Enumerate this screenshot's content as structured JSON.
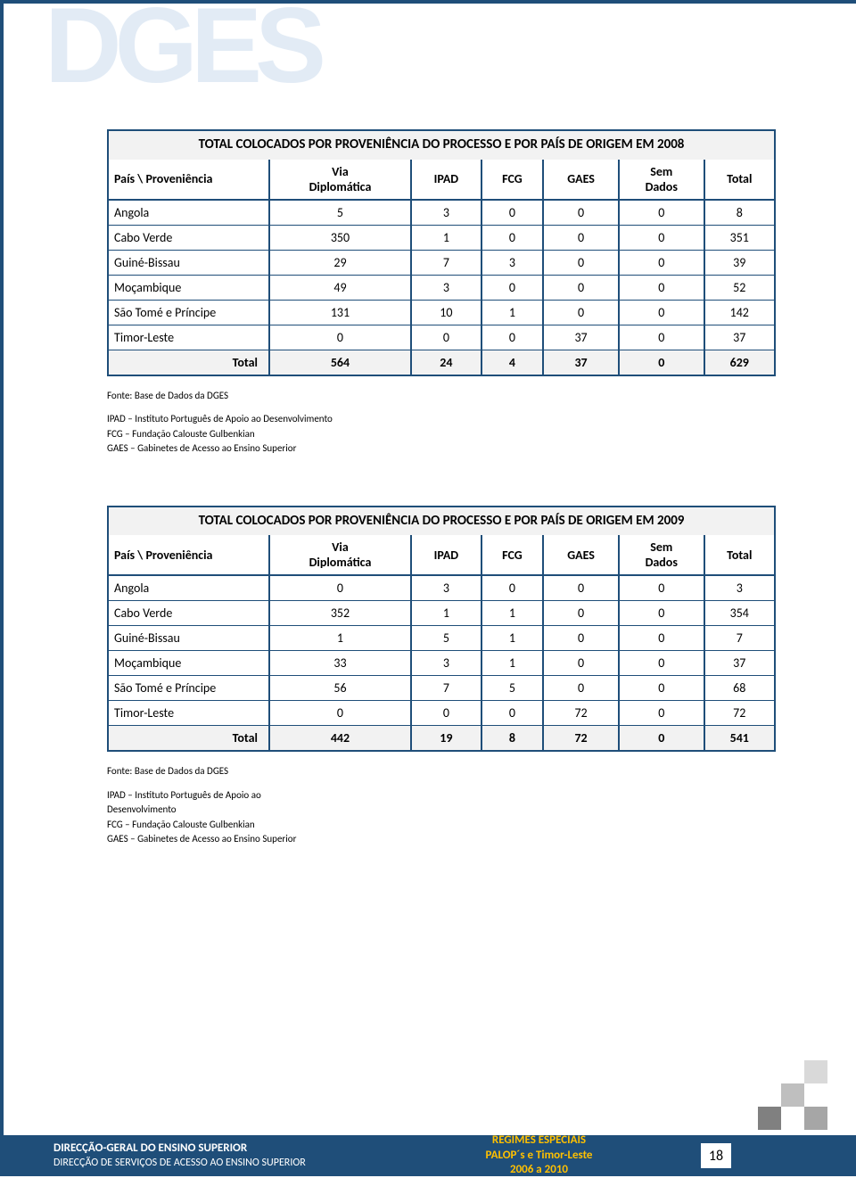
{
  "logo_text": "DGES",
  "table1": {
    "title": "TOTAL COLOCADOS POR PROVENIÊNCIA DO PROCESSO E POR PAÍS DE ORIGEM EM 2008",
    "headers": [
      "País \\ Proveniência",
      "Via Diplomática",
      "IPAD",
      "FCG",
      "GAES",
      "Sem Dados",
      "Total"
    ],
    "rows": [
      [
        "Angola",
        "5",
        "3",
        "0",
        "0",
        "0",
        "8"
      ],
      [
        "Cabo Verde",
        "350",
        "1",
        "0",
        "0",
        "0",
        "351"
      ],
      [
        "Guiné-Bissau",
        "29",
        "7",
        "3",
        "0",
        "0",
        "39"
      ],
      [
        "Moçambique",
        "49",
        "3",
        "0",
        "0",
        "0",
        "52"
      ],
      [
        "São Tomé e Príncipe",
        "131",
        "10",
        "1",
        "0",
        "0",
        "142"
      ],
      [
        "Timor-Leste",
        "0",
        "0",
        "0",
        "37",
        "0",
        "37"
      ]
    ],
    "total": [
      "Total",
      "564",
      "24",
      "4",
      "37",
      "0",
      "629"
    ]
  },
  "notes1": {
    "fonte": "Fonte: Base de Dados da DGES",
    "l1": "IPAD – Instituto Português de Apoio ao Desenvolvimento",
    "l2": "FCG – Fundação Calouste Gulbenkian",
    "l3": "GAES – Gabinetes de Acesso ao Ensino Superior"
  },
  "table2": {
    "title": "TOTAL COLOCADOS POR PROVENIÊNCIA DO PROCESSO E POR PAÍS DE ORIGEM EM 2009",
    "headers": [
      "País \\ Proveniência",
      "Via Diplomática",
      "IPAD",
      "FCG",
      "GAES",
      "Sem Dados",
      "Total"
    ],
    "rows": [
      [
        "Angola",
        "0",
        "3",
        "0",
        "0",
        "0",
        "3"
      ],
      [
        "Cabo Verde",
        "352",
        "1",
        "1",
        "0",
        "0",
        "354"
      ],
      [
        "Guiné-Bissau",
        "1",
        "5",
        "1",
        "0",
        "0",
        "7"
      ],
      [
        "Moçambique",
        "33",
        "3",
        "1",
        "0",
        "0",
        "37"
      ],
      [
        "São Tomé e Príncipe",
        "56",
        "7",
        "5",
        "0",
        "0",
        "68"
      ],
      [
        "Timor-Leste",
        "0",
        "0",
        "0",
        "72",
        "0",
        "72"
      ]
    ],
    "total": [
      "Total",
      "442",
      "19",
      "8",
      "72",
      "0",
      "541"
    ]
  },
  "notes2": {
    "fonte": "Fonte: Base de Dados da DGES",
    "l1": "IPAD – Instituto Português de Apoio ao",
    "l1b": "Desenvolvimento",
    "l2": "FCG – Fundação Calouste Gulbenkian",
    "l3": "GAES – Gabinetes de Acesso ao Ensino Superior"
  },
  "footer": {
    "left1": "DIRECÇÃO-GERAL DO ENSINO SUPERIOR",
    "left2": "DIRECÇÃO DE SERVIÇOS DE ACESSO AO ENSINO SUPERIOR",
    "center1": "REGIMES ESPECIAIS",
    "center2": "PALOP´s e Timor-Leste",
    "center3": "2006 a 2010",
    "page": "18"
  },
  "colors": {
    "border": "#1f4e79",
    "header_bg": "#f2f2f2",
    "footer_accent": "#ffc000"
  }
}
